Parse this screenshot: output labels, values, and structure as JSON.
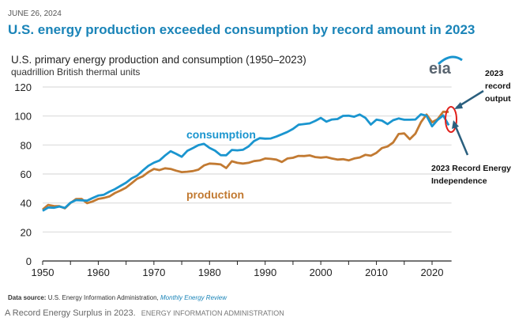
{
  "date": "JUNE 26, 2024",
  "headline": "U.S. energy production exceeded consumption by record amount in 2023",
  "logo": "eia",
  "annotations": {
    "record_output": "2023 record output",
    "record_independence": "2023 Record Energy Independence"
  },
  "source_label": "Data source:",
  "source_text": "U.S. Energy Information Administration,",
  "source_link": "Monthly Energy Review",
  "caption": "A Record Energy Surplus in 2023.",
  "caption_credit": "ENERGY INFORMATION ADMINISTRATION",
  "colors": {
    "consumption": "#1a95cf",
    "production": "#c27a32",
    "headline": "#1a84b8",
    "highlight": "#e0201b"
  },
  "chart_data": {
    "type": "line",
    "title": "U.S. primary energy production and consumption (1950–2023)",
    "subtitle": "quadrillion British thermal units",
    "xlabel": "",
    "ylabel": "",
    "xlim": [
      1950,
      2023
    ],
    "ylim": [
      0,
      120
    ],
    "xticks": [
      1950,
      1960,
      1970,
      1980,
      1990,
      2000,
      2010,
      2020
    ],
    "yticks": [
      0,
      20,
      40,
      60,
      80,
      100,
      120
    ],
    "grid": true,
    "x": [
      1950,
      1951,
      1952,
      1953,
      1954,
      1955,
      1956,
      1957,
      1958,
      1959,
      1960,
      1961,
      1962,
      1963,
      1964,
      1965,
      1966,
      1967,
      1968,
      1969,
      1970,
      1971,
      1972,
      1973,
      1974,
      1975,
      1976,
      1977,
      1978,
      1979,
      1980,
      1981,
      1982,
      1983,
      1984,
      1985,
      1986,
      1987,
      1988,
      1989,
      1990,
      1991,
      1992,
      1993,
      1994,
      1995,
      1996,
      1997,
      1998,
      1999,
      2000,
      2001,
      2002,
      2003,
      2004,
      2005,
      2006,
      2007,
      2008,
      2009,
      2010,
      2011,
      2012,
      2013,
      2014,
      2015,
      2016,
      2017,
      2018,
      2019,
      2020,
      2021,
      2022,
      2023
    ],
    "series": [
      {
        "name": "consumption",
        "label": "consumption",
        "values": [
          34.6,
          36.9,
          36.7,
          37.6,
          36.6,
          40.2,
          42.0,
          41.8,
          41.6,
          43.5,
          45.1,
          45.7,
          47.8,
          49.6,
          51.8,
          54.0,
          57.0,
          58.9,
          62.4,
          65.6,
          67.8,
          69.3,
          72.7,
          75.7,
          73.9,
          71.9,
          75.9,
          77.9,
          79.9,
          80.8,
          78.0,
          76.1,
          73.0,
          72.9,
          76.6,
          76.3,
          76.7,
          79.0,
          82.7,
          84.7,
          84.4,
          84.5,
          85.8,
          87.4,
          89.0,
          91.1,
          94.0,
          94.4,
          94.9,
          96.6,
          98.7,
          96.1,
          97.6,
          97.9,
          100.1,
          100.2,
          99.5,
          101.0,
          98.8,
          94.1,
          97.5,
          96.8,
          94.4,
          97.1,
          98.3,
          97.4,
          97.4,
          97.6,
          101.2,
          100.2,
          92.9,
          97.3,
          100.4,
          93.6
        ]
      },
      {
        "name": "production",
        "label": "production",
        "values": [
          35.5,
          38.7,
          37.9,
          37.8,
          36.3,
          40.0,
          42.7,
          42.8,
          39.9,
          41.1,
          42.8,
          43.5,
          44.5,
          46.9,
          48.6,
          50.6,
          53.7,
          56.8,
          58.4,
          61.3,
          63.5,
          62.7,
          63.9,
          63.5,
          62.3,
          61.3,
          61.6,
          62.0,
          63.0,
          65.9,
          67.2,
          67.0,
          66.6,
          64.1,
          68.8,
          67.7,
          67.2,
          67.7,
          68.9,
          69.3,
          70.7,
          70.4,
          69.9,
          68.3,
          70.7,
          71.2,
          72.5,
          72.4,
          72.8,
          71.7,
          71.3,
          71.7,
          70.7,
          69.9,
          70.2,
          69.4,
          70.7,
          71.4,
          73.2,
          72.6,
          74.6,
          77.9,
          79.0,
          81.7,
          87.6,
          88.0,
          84.0,
          87.8,
          95.7,
          101.0,
          95.7,
          97.8,
          102.9,
          102.8
        ]
      }
    ],
    "series_labels": [
      {
        "series": "consumption",
        "text": "consumption"
      },
      {
        "series": "production",
        "text": "production"
      }
    ]
  }
}
